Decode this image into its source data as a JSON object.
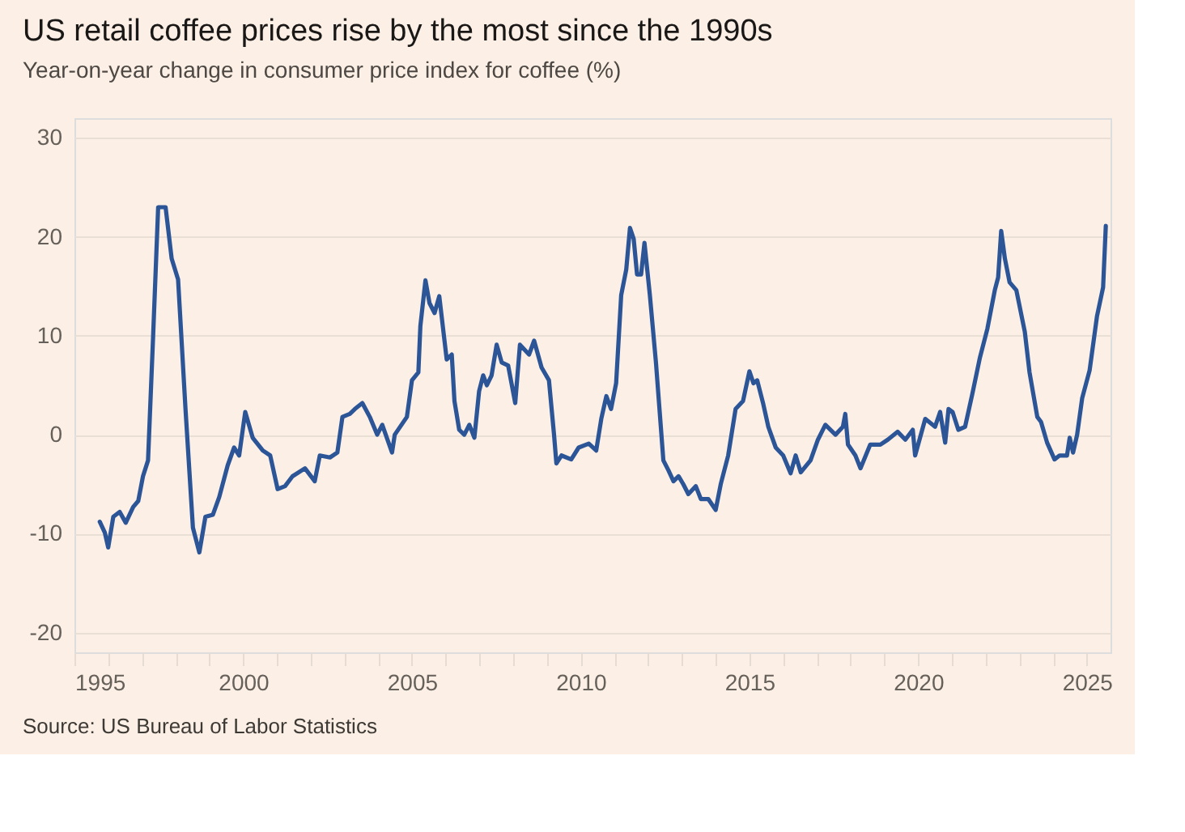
{
  "chart_data": {
    "type": "line",
    "title": "US retail coffee prices rise by the most since the 1990s",
    "subtitle": "Year-on-year change in consumer price index for coffee (%)",
    "annotations": [
      "Source: US Bureau of Labor Statistics"
    ],
    "x": [
      1995.75,
      1995.9,
      1996.0,
      1996.15,
      1996.34,
      1996.52,
      1996.74,
      1996.89,
      1997.03,
      1997.18,
      1997.33,
      1997.48,
      1997.7,
      1997.88,
      1998.07,
      1998.29,
      1998.51,
      1998.7,
      1998.88,
      1999.1,
      1999.29,
      1999.54,
      1999.73,
      1999.88,
      2000.06,
      2000.28,
      2000.58,
      2000.8,
      2001.02,
      2001.24,
      2001.46,
      2001.83,
      2002.12,
      2002.27,
      2002.57,
      2002.79,
      2002.94,
      2003.16,
      2003.31,
      2003.53,
      2003.75,
      2003.97,
      2004.12,
      2004.41,
      2004.49,
      2004.85,
      2005.0,
      2005.19,
      2005.25,
      2005.4,
      2005.52,
      2005.67,
      2005.81,
      2006.03,
      2006.18,
      2006.26,
      2006.4,
      2006.55,
      2006.7,
      2006.85,
      2006.99,
      2007.11,
      2007.22,
      2007.36,
      2007.51,
      2007.66,
      2007.85,
      2008.06,
      2008.2,
      2008.47,
      2008.62,
      2008.84,
      2009.06,
      2009.21,
      2009.28,
      2009.43,
      2009.72,
      2009.94,
      2010.24,
      2010.46,
      2010.61,
      2010.76,
      2010.9,
      2011.05,
      2011.2,
      2011.35,
      2011.46,
      2011.57,
      2011.67,
      2011.79,
      2011.89,
      2012.05,
      2012.23,
      2012.45,
      2012.6,
      2012.75,
      2012.9,
      2013.04,
      2013.19,
      2013.41,
      2013.56,
      2013.78,
      2014.0,
      2014.15,
      2014.37,
      2014.59,
      2014.81,
      2015.0,
      2015.12,
      2015.23,
      2015.41,
      2015.56,
      2015.78,
      2016.0,
      2016.22,
      2016.37,
      2016.52,
      2016.81,
      2017.03,
      2017.25,
      2017.55,
      2017.77,
      2017.84,
      2017.92,
      2018.14,
      2018.29,
      2018.58,
      2018.88,
      2019.1,
      2019.39,
      2019.62,
      2019.84,
      2019.91,
      2020.21,
      2020.5,
      2020.65,
      2020.8,
      2020.9,
      2021.02,
      2021.19,
      2021.39,
      2021.61,
      2021.83,
      2022.05,
      2022.27,
      2022.37,
      2022.46,
      2022.57,
      2022.71,
      2022.91,
      2023.16,
      2023.3,
      2023.53,
      2023.64,
      2023.82,
      2024.04,
      2024.19,
      2024.41,
      2024.49,
      2024.59,
      2024.71,
      2024.86,
      2025.08,
      2025.3,
      2025.48,
      2025.56
    ],
    "series": [
      {
        "color": "#2b5597",
        "values": [
          -8.8,
          -9.9,
          -11.4,
          -8.3,
          -7.8,
          -8.9,
          -7.3,
          -6.7,
          -4.2,
          -2.6,
          9.9,
          23.0,
          23.0,
          17.8,
          15.7,
          2.6,
          -9.4,
          -11.9,
          -8.3,
          -8.1,
          -6.3,
          -3.1,
          -1.3,
          -2.1,
          2.3,
          -0.3,
          -1.6,
          -2.1,
          -5.5,
          -5.2,
          -4.2,
          -3.4,
          -4.7,
          -2.1,
          -2.3,
          -1.8,
          1.8,
          2.1,
          2.6,
          3.2,
          1.8,
          0.0,
          1.0,
          -1.8,
          0.0,
          1.8,
          5.5,
          6.3,
          11.0,
          15.6,
          13.3,
          12.3,
          14.0,
          7.6,
          8.1,
          3.4,
          0.5,
          0.0,
          1.0,
          -0.3,
          4.4,
          6.0,
          5.0,
          6.0,
          9.1,
          7.3,
          7.0,
          3.2,
          9.1,
          8.1,
          9.5,
          6.8,
          5.5,
          0.0,
          -2.9,
          -2.1,
          -2.5,
          -1.3,
          -0.9,
          -1.6,
          1.6,
          3.9,
          2.6,
          5.2,
          14.1,
          16.7,
          20.9,
          19.8,
          16.2,
          16.2,
          19.4,
          14.1,
          7.3,
          -2.6,
          -3.6,
          -4.7,
          -4.2,
          -5.0,
          -6.0,
          -5.2,
          -6.5,
          -6.5,
          -7.6,
          -5.0,
          -2.1,
          2.6,
          3.4,
          6.4,
          5.2,
          5.5,
          3.1,
          0.8,
          -1.3,
          -2.1,
          -3.9,
          -2.1,
          -3.8,
          -2.6,
          -0.5,
          1.0,
          0.0,
          0.8,
          2.1,
          -1.0,
          -2.1,
          -3.4,
          -1.0,
          -1.0,
          -0.5,
          0.3,
          -0.5,
          0.5,
          -2.1,
          1.6,
          0.8,
          2.3,
          -0.8,
          2.6,
          2.3,
          0.5,
          0.8,
          4.2,
          7.8,
          10.7,
          14.6,
          15.9,
          20.6,
          17.8,
          15.4,
          14.6,
          10.4,
          6.3,
          1.8,
          1.3,
          -0.8,
          -2.5,
          -2.1,
          -2.1,
          -0.3,
          -1.8,
          0.0,
          3.7,
          6.5,
          12.0,
          14.9,
          21.1
        ]
      }
    ],
    "xlim": [
      1995,
      2025.7
    ],
    "ylim": [
      -22,
      32
    ],
    "xticks": [
      1995,
      {
        "value": 1996,
        "label": null
      },
      {
        "value": 1997,
        "label": null
      },
      {
        "value": 1998,
        "label": null
      },
      {
        "value": 1999,
        "label": null
      },
      2000,
      {
        "value": 2001,
        "label": null
      },
      {
        "value": 2002,
        "label": null
      },
      {
        "value": 2003,
        "label": null
      },
      {
        "value": 2004,
        "label": null
      },
      2005,
      {
        "value": 2006,
        "label": null
      },
      {
        "value": 2007,
        "label": null
      },
      {
        "value": 2008,
        "label": null
      },
      {
        "value": 2009,
        "label": null
      },
      2010,
      {
        "value": 2011,
        "label": null
      },
      {
        "value": 2012,
        "label": null
      },
      {
        "value": 2013,
        "label": null
      },
      {
        "value": 2014,
        "label": null
      },
      2015,
      {
        "value": 2016,
        "label": null
      },
      {
        "value": 2017,
        "label": null
      },
      {
        "value": 2018,
        "label": null
      },
      {
        "value": 2019,
        "label": null
      },
      2020,
      {
        "value": 2021,
        "label": null
      },
      {
        "value": 2022,
        "label": null
      },
      {
        "value": 2023,
        "label": null
      },
      {
        "value": 2024,
        "label": null
      },
      2025
    ],
    "yticks": [
      -20,
      -10,
      0,
      10,
      20,
      30
    ],
    "grid": "y",
    "line_style": "solid"
  }
}
